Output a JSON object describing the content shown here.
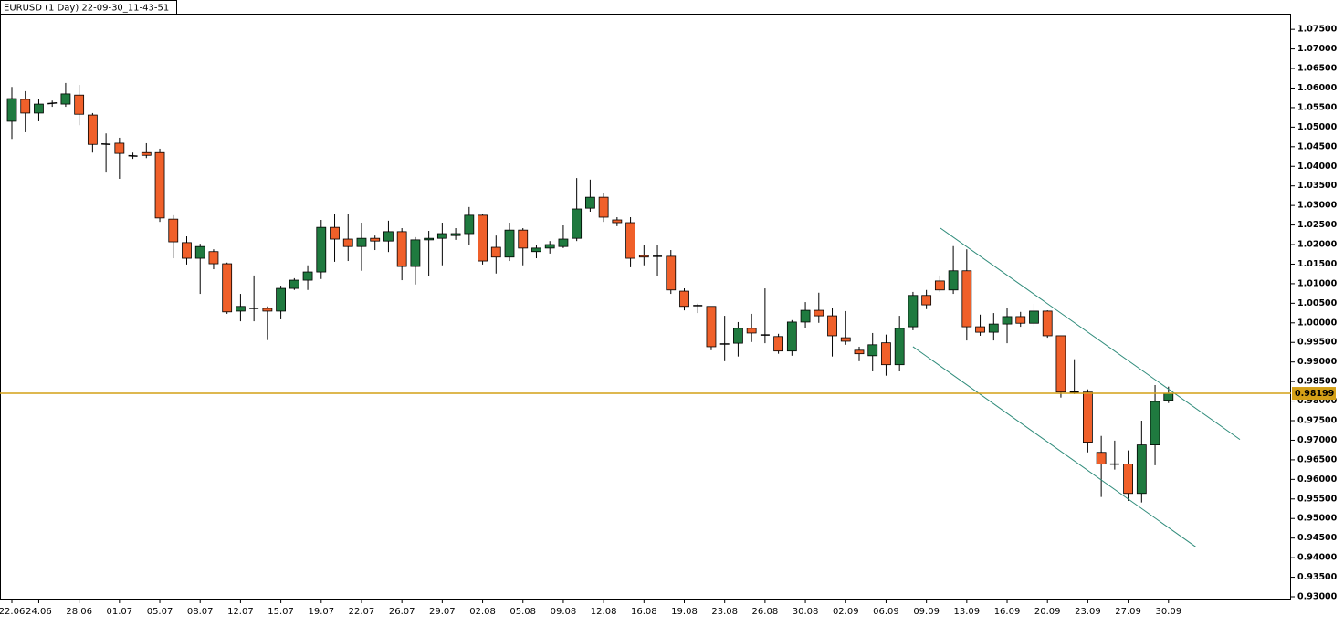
{
  "chart_data": {
    "type": "candlestick",
    "title": "EURUSD (1 Day) 22-09-30_11-43-51",
    "categories": [
      "22.06",
      null,
      "24.06",
      null,
      null,
      "28.06",
      null,
      null,
      "01.07",
      null,
      null,
      "05.07",
      null,
      null,
      "08.07",
      null,
      null,
      "12.07",
      null,
      null,
      "15.07",
      null,
      null,
      "19.07",
      null,
      null,
      "22.07",
      null,
      null,
      "26.07",
      null,
      null,
      "29.07",
      null,
      null,
      "02.08",
      null,
      null,
      "05.08",
      null,
      null,
      "09.08",
      null,
      null,
      "12.08",
      null,
      null,
      "16.08",
      null,
      null,
      "19.08",
      null,
      null,
      "23.08",
      null,
      null,
      "26.08",
      null,
      null,
      "30.08",
      null,
      null,
      "02.09",
      null,
      null,
      "06.09",
      null,
      null,
      "09.09",
      null,
      null,
      "13.09",
      null,
      null,
      "16.09",
      null,
      null,
      "20.09",
      null,
      null,
      "23.09",
      null,
      null,
      "27.09",
      null,
      null,
      "30.09"
    ],
    "open": [
      1.0515,
      1.0571,
      1.0536,
      1.056,
      1.0559,
      1.0582,
      1.0531,
      1.0457,
      1.0459,
      1.0427,
      1.0435,
      1.0435,
      1.0265,
      1.0205,
      1.0165,
      1.0182,
      1.0151,
      1.003,
      1.0037,
      1.0037,
      1.003,
      1.0088,
      1.0109,
      1.013,
      1.0244,
      1.0214,
      1.0195,
      1.0216,
      1.0209,
      1.0233,
      1.0144,
      1.0212,
      1.0216,
      1.0223,
      1.0228,
      1.0275,
      1.0193,
      1.0168,
      1.0237,
      1.0182,
      1.0191,
      1.0195,
      1.0216,
      1.0293,
      1.0321,
      1.0263,
      1.0256,
      1.0172,
      1.017,
      1.017,
      1.0081,
      1.0044,
      1.0042,
      0.9946,
      0.9948,
      0.9986,
      0.9969,
      0.9965,
      0.9928,
      1.0002,
      1.0032,
      1.0018,
      0.9962,
      0.993,
      0.9916,
      0.9949,
      0.9893,
      0.999,
      1.007,
      1.0107,
      1.0084,
      1.0133,
      0.999,
      0.9976,
      0.9997,
      1.0016,
      0.9999,
      1.003,
      0.9967,
      0.9823,
      0.9823,
      0.9669,
      0.9639,
      0.9639,
      0.9564,
      0.9688,
      0.9802
    ],
    "high": [
      1.0603,
      1.0592,
      1.0573,
      1.0568,
      1.0613,
      1.0608,
      1.0536,
      1.0484,
      1.0473,
      1.0435,
      1.0459,
      1.0445,
      1.0275,
      1.0221,
      1.0202,
      1.0188,
      1.0154,
      1.0074,
      1.0121,
      1.0042,
      1.0095,
      1.0114,
      1.0147,
      1.0263,
      1.0277,
      1.0277,
      1.0256,
      1.0223,
      1.0261,
      1.0242,
      1.0219,
      1.0235,
      1.0256,
      1.0242,
      1.0296,
      1.0279,
      1.0223,
      1.0256,
      1.0242,
      1.02,
      1.0209,
      1.0249,
      1.037,
      1.0366,
      1.0331,
      1.027,
      1.027,
      1.0198,
      1.02,
      1.0186,
      1.0088,
      1.0049,
      1.0042,
      1.0018,
      1.0002,
      1.0023,
      1.0088,
      0.9972,
      1.0007,
      1.0053,
      1.0077,
      1.0037,
      1.003,
      0.9939,
      0.9974,
      0.997,
      1.0018,
      1.0079,
      1.0084,
      1.0121,
      1.0196,
      1.0188,
      1.0021,
      1.0025,
      1.0039,
      1.0028,
      1.0049,
      1.0032,
      0.9967,
      0.9907,
      0.983,
      0.9711,
      0.9699,
      0.9674,
      0.975,
      0.9841,
      0.9837
    ],
    "low": [
      1.047,
      1.0487,
      1.0515,
      1.0552,
      1.0552,
      1.0505,
      1.0435,
      1.0384,
      1.0368,
      1.0419,
      1.0421,
      1.0258,
      1.0165,
      1.0149,
      1.0074,
      1.0137,
      1.0023,
      1.0004,
      1.0004,
      0.9956,
      1.0009,
      1.0084,
      1.0084,
      1.0112,
      1.0156,
      1.0158,
      1.0133,
      1.0186,
      1.0181,
      1.0109,
      1.0098,
      1.0119,
      1.0147,
      1.0212,
      1.02,
      1.0149,
      1.0126,
      1.0158,
      1.0147,
      1.0165,
      1.0177,
      1.0191,
      1.0209,
      1.0284,
      1.0258,
      1.0247,
      1.0142,
      1.0147,
      1.0119,
      1.0074,
      1.0032,
      1.0025,
      0.993,
      0.9902,
      0.9914,
      0.9951,
      0.9948,
      0.9921,
      0.9916,
      0.9986,
      1.0,
      0.9914,
      0.9944,
      0.9902,
      0.9876,
      0.9865,
      0.9876,
      0.9981,
      1.0035,
      1.0079,
      1.0074,
      0.9955,
      0.9967,
      0.9955,
      0.9948,
      0.999,
      0.999,
      0.9962,
      0.9809,
      0.9818,
      0.9669,
      0.9555,
      0.9625,
      0.9545,
      0.9541,
      0.9636,
      0.9795
    ],
    "close": [
      1.0573,
      1.0536,
      1.0559,
      1.0562,
      1.0585,
      1.0533,
      1.0456,
      1.0456,
      1.0433,
      1.0426,
      1.0428,
      1.0268,
      1.0207,
      1.0165,
      1.0195,
      1.0151,
      1.0028,
      1.0042,
      1.0037,
      1.003,
      1.0088,
      1.0109,
      1.013,
      1.0244,
      1.0214,
      1.0195,
      1.0216,
      1.0209,
      1.0233,
      1.0144,
      1.0212,
      1.0216,
      1.0228,
      1.0228,
      1.0275,
      1.0158,
      1.0168,
      1.0237,
      1.0191,
      1.0191,
      1.02,
      1.0214,
      1.0291,
      1.0321,
      1.027,
      1.0256,
      1.0165,
      1.0168,
      1.017,
      1.0084,
      1.0042,
      1.0044,
      0.9939,
      0.9946,
      0.9986,
      0.9974,
      0.9969,
      0.9928,
      1.0002,
      1.0032,
      1.0018,
      0.9967,
      0.9953,
      0.9921,
      0.9944,
      0.9893,
      0.9986,
      1.007,
      1.0046,
      1.0084,
      1.0133,
      0.999,
      0.9976,
      0.9997,
      1.0016,
      0.9999,
      1.003,
      0.9967,
      0.9823,
      0.9823,
      0.9695,
      0.9639,
      0.9639,
      0.9564,
      0.9688,
      0.9799,
      0.982
    ],
    "up_color": "#1f7a3f",
    "down_color": "#f0602a",
    "current_price": 0.98199,
    "current_price_color": "#d4a017",
    "trendlines": [
      {
        "x": [
          69.04,
          91.31
        ],
        "y": [
          1.0242,
          0.9702
        ]
      },
      {
        "x": [
          67.0,
          88.05
        ],
        "y": [
          0.9939,
          0.9427
        ]
      }
    ],
    "trendline_color": "#2e8b7a",
    "ylim": [
      0.9293,
      1.079
    ],
    "yticks": [
      {
        "value": 0.93,
        "label": "0.93000"
      },
      {
        "value": 0.935,
        "label": "0.93500"
      },
      {
        "value": 0.94,
        "label": "0.94000"
      },
      {
        "value": 0.945,
        "label": "0.94500"
      },
      {
        "value": 0.95,
        "label": "0.95000"
      },
      {
        "value": 0.955,
        "label": "0.95500"
      },
      {
        "value": 0.96,
        "label": "0.96000"
      },
      {
        "value": 0.965,
        "label": "0.96500"
      },
      {
        "value": 0.97,
        "label": "0.97000"
      },
      {
        "value": 0.975,
        "label": "0.97500"
      },
      {
        "value": 0.98,
        "label": "0.98000"
      },
      {
        "value": 0.985,
        "label": "0.98500"
      },
      {
        "value": 0.99,
        "label": "0.99000"
      },
      {
        "value": 0.995,
        "label": "0.99500"
      },
      {
        "value": 1.0,
        "label": "1.00000"
      },
      {
        "value": 1.005,
        "label": "1.00500"
      },
      {
        "value": 1.01,
        "label": "1.01000"
      },
      {
        "value": 1.015,
        "label": "1.01500"
      },
      {
        "value": 1.02,
        "label": "1.02000"
      },
      {
        "value": 1.025,
        "label": "1.02500"
      },
      {
        "value": 1.03,
        "label": "1.03000"
      },
      {
        "value": 1.035,
        "label": "1.03500"
      },
      {
        "value": 1.04,
        "label": "1.04000"
      },
      {
        "value": 1.045,
        "label": "1.04500"
      },
      {
        "value": 1.05,
        "label": "1.05000"
      },
      {
        "value": 1.055,
        "label": "1.05500"
      },
      {
        "value": 1.06,
        "label": "1.06000"
      },
      {
        "value": 1.065,
        "label": "1.06500"
      },
      {
        "value": 1.07,
        "label": "1.07000"
      },
      {
        "value": 1.075,
        "label": "1.07500"
      }
    ]
  }
}
